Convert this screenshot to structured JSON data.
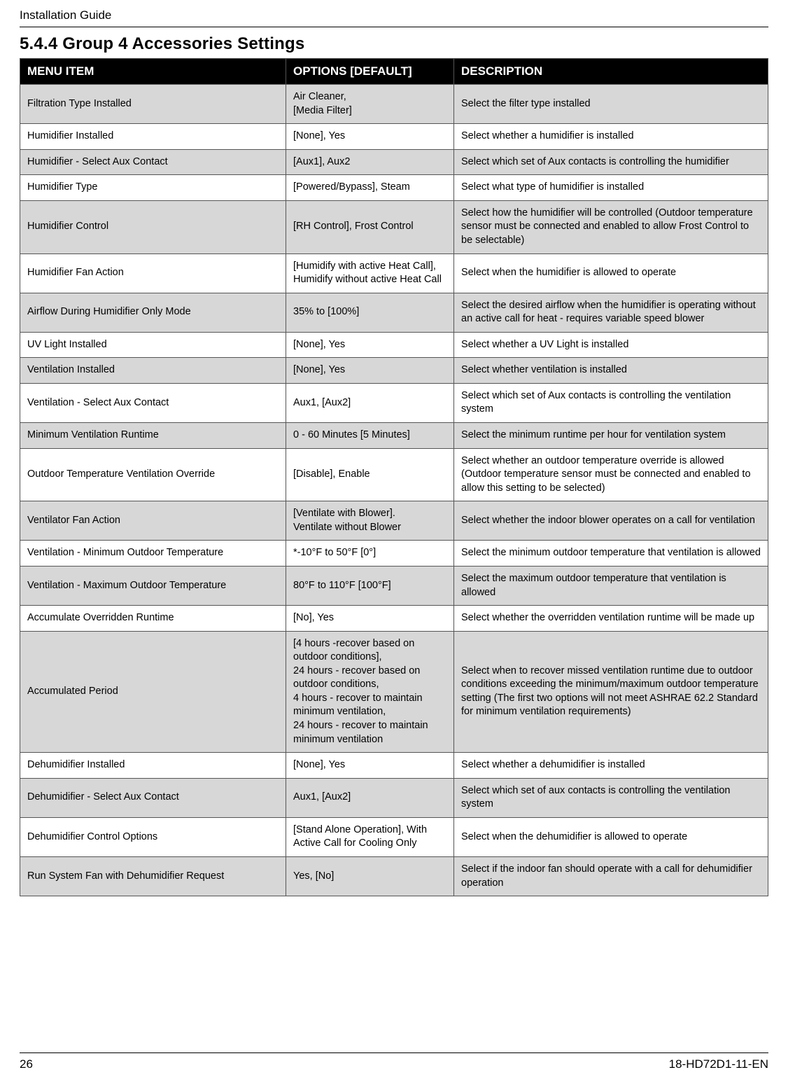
{
  "doc_header": "Installation Guide",
  "section_title": "5.4.4 Group 4 Accessories Settings",
  "page_number": "26",
  "doc_code": "18-HD72D1-11-EN",
  "table": {
    "headers": {
      "menu": "MENU ITEM",
      "options": "OPTIONS [DEFAULT]",
      "desc": "DESCRIPTION"
    },
    "th_bg": "#000000",
    "th_color": "#ffffff",
    "shade_bg": "#d7d7d7",
    "border_color": "#555555",
    "font_size": 14.5,
    "header_font_size": 17,
    "col_widths": {
      "menu": 380,
      "options": 240
    },
    "rows": [
      {
        "shaded": true,
        "menu": "Filtration Type Installed",
        "options": "Air Cleaner,\n[Media Filter]",
        "desc": "Select the filter type installed"
      },
      {
        "shaded": false,
        "menu": "Humidifier Installed",
        "options": "[None], Yes",
        "desc": "Select whether a humidifier is installed"
      },
      {
        "shaded": true,
        "menu": "Humidifier - Select Aux Contact",
        "options": "[Aux1], Aux2",
        "desc": "Select which set of Aux contacts is controlling the humidifier"
      },
      {
        "shaded": false,
        "menu": "Humidifier Type",
        "options": "[Powered/Bypass], Steam",
        "desc": "Select what type of humidifier is installed"
      },
      {
        "shaded": true,
        "menu": "Humidifier Control",
        "options": "[RH Control], Frost Control",
        "desc": "Select how the humidifier will be controlled (Outdoor temperature sensor must be connected and enabled to allow Frost Control to be selectable)"
      },
      {
        "shaded": false,
        "menu": "Humidifier Fan Action",
        "options": "[Humidify with active Heat Call], Humidify without active Heat Call",
        "desc": "Select when the humidifier is allowed to operate"
      },
      {
        "shaded": true,
        "menu": "Airflow During Humidifier Only Mode",
        "options": "35% to [100%]",
        "desc": "Select the desired airflow when the humidifier is operating without an active call for heat - requires variable speed blower"
      },
      {
        "shaded": false,
        "menu": "UV Light Installed",
        "options": "[None], Yes",
        "desc": "Select whether a UV Light is installed"
      },
      {
        "shaded": true,
        "menu": "Ventilation Installed",
        "options": "[None], Yes",
        "desc": "Select whether ventilation is installed"
      },
      {
        "shaded": false,
        "menu": "Ventilation - Select Aux Contact",
        "options": "Aux1, [Aux2]",
        "desc": "Select which set of Aux contacts is controlling the ventilation system"
      },
      {
        "shaded": true,
        "menu": "Minimum Ventilation Runtime",
        "options": "0 - 60 Minutes [5 Minutes]",
        "desc": "Select the minimum runtime per hour for ventilation system"
      },
      {
        "shaded": false,
        "menu": "Outdoor Temperature Ventilation Override",
        "options": "[Disable], Enable",
        "desc": "Select whether an outdoor temperature override is allowed  (Outdoor temperature sensor must be connected and enabled to allow this setting to be selected)"
      },
      {
        "shaded": true,
        "menu": "Ventilator Fan Action",
        "options": "[Ventilate with Blower].\nVentilate without Blower",
        "desc": "Select whether the indoor blower operates on a call for ventilation"
      },
      {
        "shaded": false,
        "menu": "Ventilation - Minimum Outdoor Temperature",
        "options": "*-10°F to 50°F [0°]",
        "desc": "Select the minimum outdoor temperature that ventilation is allowed"
      },
      {
        "shaded": true,
        "menu": "Ventilation - Maximum Outdoor Temperature",
        "options": "80°F to 110°F [100°F]",
        "desc": "Select the maximum outdoor temperature that ventilation is allowed"
      },
      {
        "shaded": false,
        "menu": "Accumulate Overridden Runtime",
        "options": "[No], Yes",
        "desc": "Select whether the overridden ventilation runtime will be made up"
      },
      {
        "shaded": true,
        "menu": "Accumulated Period",
        "options": "[4 hours -recover based on outdoor conditions],\n24 hours - recover based on outdoor conditions,\n4 hours - recover to maintain minimum ventilation,\n24 hours - recover to maintain minimum ventilation",
        "desc": "Select when to recover missed ventilation runtime due to outdoor conditions exceeding the minimum/maximum outdoor temperature setting (The first two options will not meet ASHRAE 62.2 Standard for minimum ventilation requirements)"
      },
      {
        "shaded": false,
        "menu": "Dehumidifier Installed",
        "options": "[None], Yes",
        "desc": "Select whether a dehumidifier is installed"
      },
      {
        "shaded": true,
        "menu": "Dehumidifier - Select Aux Contact",
        "options": "Aux1, [Aux2]",
        "desc": "Select which set of aux contacts is controlling the ventilation system"
      },
      {
        "shaded": false,
        "menu": "Dehumidifier Control Options",
        "options": "[Stand Alone Operation], With Active Call for Cooling Only",
        "desc": "Select when the dehumidifier is allowed to operate"
      },
      {
        "shaded": true,
        "menu": "Run System Fan with Dehumidifier Request",
        "options": "Yes, [No]",
        "desc": "Select if the indoor fan should operate with a call for dehumidifier operation"
      }
    ]
  }
}
